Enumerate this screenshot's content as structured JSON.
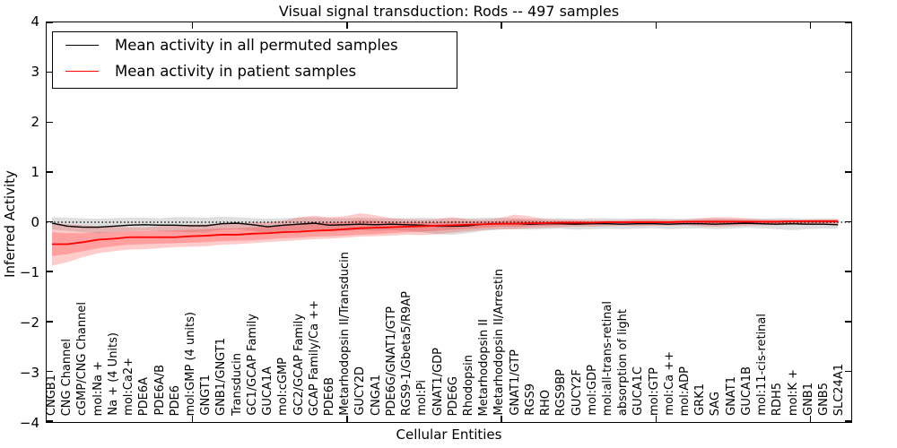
{
  "window": {
    "background": "#ffffff",
    "accent_colors": {
      "permuted": "#000000",
      "patient": "#ff0000"
    }
  },
  "chart_data": {
    "type": "line",
    "title": "Visual signal transduction: Rods -- 497 samples",
    "xlabel": "Cellular Entities",
    "ylabel": "Inferred Activity",
    "ylim": [
      -4,
      4
    ],
    "ytick_values": [
      4,
      3,
      2,
      1,
      0,
      -1,
      -2,
      -3,
      -4
    ],
    "ytick_labels": [
      "4",
      "3",
      "2",
      "1",
      "0",
      "−1",
      "−2",
      "−3",
      "−4"
    ],
    "major_x_tick_positions": [
      10,
      20,
      30,
      40,
      50
    ],
    "grid": false,
    "zero_reference_line": {
      "value": 0,
      "style": "dotted",
      "color": "#000000"
    },
    "legend_position": "upper left",
    "categories": [
      "CNGB1",
      "CNG Channel",
      "cGMP/CNG Channel",
      "mol:Na +",
      "Na + (4 Units)",
      "mol:Ca2+",
      "PDE6A",
      "PDE6A/B",
      "PDE6",
      "mol:GMP (4 units)",
      "GNGT1",
      "GNB1/GNGT1",
      "Transducin",
      "GC1/GCAP Family",
      "GUCA1A",
      "mol:cGMP",
      "GC2/GCAP Family",
      "GCAP Family/Ca ++",
      "PDE6B",
      "Metarhodopsin II/Transducin",
      "GUCY2D",
      "CNGA1",
      "PDE6G/GNAT1/GTP",
      "RGS9-1/Gbeta5/R9AP",
      "mol:Pi",
      "GNAT1/GDP",
      "PDE6G",
      "Rhodopsin",
      "Metarhodopsin II",
      "Metarhodopsin II/Arrestin",
      "GNAT1/GTP",
      "RGS9",
      "RHO",
      "RGS9BP",
      "GUCY2F",
      "mol:GDP",
      "mol:all-trans-retinal",
      "absorption of light",
      "GUCA1C",
      "mol:GTP",
      "mol:Ca ++",
      "mol:ADP",
      "GRK1",
      "SAG",
      "GNAT1",
      "GUCA1B",
      "mol:11-cis-retinal",
      "RDH5",
      "mol:K +",
      "GNB1",
      "GNB5",
      "SLC24A1"
    ],
    "series": [
      {
        "name": "Mean activity in all permuted samples",
        "color": "#000000",
        "line_width": 1.4,
        "values": [
          -0.02,
          -0.08,
          -0.1,
          -0.1,
          -0.08,
          -0.06,
          -0.05,
          -0.06,
          -0.06,
          -0.07,
          -0.07,
          -0.03,
          -0.02,
          -0.05,
          -0.09,
          -0.06,
          -0.04,
          -0.02,
          -0.06,
          -0.05,
          -0.04,
          -0.05,
          -0.04,
          -0.05,
          -0.06,
          -0.08,
          -0.08,
          -0.07,
          -0.04,
          -0.03,
          -0.03,
          -0.04,
          -0.03,
          -0.03,
          -0.04,
          -0.03,
          -0.03,
          -0.04,
          -0.03,
          -0.03,
          -0.04,
          -0.03,
          -0.03,
          -0.04,
          -0.03,
          -0.02,
          -0.03,
          -0.04,
          -0.03,
          -0.04,
          -0.04,
          -0.05
        ]
      },
      {
        "name": "Mean activity in patient samples",
        "color": "#ff0000",
        "line_width": 1.8,
        "values": [
          -0.44,
          -0.44,
          -0.4,
          -0.35,
          -0.33,
          -0.3,
          -0.3,
          -0.3,
          -0.3,
          -0.28,
          -0.27,
          -0.25,
          -0.25,
          -0.23,
          -0.22,
          -0.2,
          -0.19,
          -0.17,
          -0.16,
          -0.14,
          -0.12,
          -0.11,
          -0.1,
          -0.09,
          -0.08,
          -0.07,
          -0.06,
          -0.05,
          -0.04,
          -0.03,
          -0.03,
          -0.02,
          -0.02,
          -0.01,
          -0.01,
          -0.01,
          0.0,
          0.0,
          0.0,
          0.0,
          0.0,
          0.01,
          0.01,
          0.01,
          0.01,
          0.01,
          0.01,
          0.01,
          0.02,
          0.02,
          0.02,
          0.02
        ]
      }
    ],
    "bands": [
      {
        "name": "permuted-samples-range",
        "fill": "rgba(0,0,0,0.13)",
        "hi": [
          0.1,
          0.09,
          0.08,
          0.07,
          0.08,
          0.09,
          0.09,
          0.08,
          0.1,
          0.1,
          0.09,
          0.11,
          0.1,
          0.08,
          0.07,
          0.08,
          0.09,
          0.1,
          0.08,
          0.08,
          0.09,
          0.08,
          0.08,
          0.08,
          0.09,
          0.08,
          0.08,
          0.08,
          0.09,
          0.09,
          0.08,
          0.07,
          0.08,
          0.08,
          0.07,
          0.08,
          0.08,
          0.07,
          0.07,
          0.08,
          0.07,
          0.07,
          0.07,
          0.08,
          0.07,
          0.07,
          0.07,
          0.08,
          0.08,
          0.07,
          0.07,
          0.07
        ],
        "lo": [
          -0.15,
          -0.17,
          -0.2,
          -0.22,
          -0.2,
          -0.18,
          -0.17,
          -0.18,
          -0.19,
          -0.2,
          -0.19,
          -0.15,
          -0.14,
          -0.17,
          -0.21,
          -0.18,
          -0.17,
          -0.14,
          -0.18,
          -0.17,
          -0.16,
          -0.17,
          -0.16,
          -0.17,
          -0.2,
          -0.24,
          -0.25,
          -0.22,
          -0.17,
          -0.15,
          -0.14,
          -0.15,
          -0.14,
          -0.13,
          -0.15,
          -0.14,
          -0.13,
          -0.14,
          -0.13,
          -0.12,
          -0.14,
          -0.13,
          -0.12,
          -0.14,
          -0.13,
          -0.11,
          -0.12,
          -0.14,
          -0.16,
          -0.14,
          -0.13,
          -0.13
        ]
      },
      {
        "name": "patient-samples-range-outer",
        "fill": "rgba(255,0,0,0.20)",
        "hi": [
          -0.02,
          -0.04,
          -0.06,
          -0.08,
          -0.09,
          -0.1,
          -0.1,
          -0.08,
          -0.06,
          -0.05,
          -0.04,
          -0.03,
          -0.02,
          -0.01,
          0.0,
          0.03,
          0.1,
          0.13,
          0.1,
          0.12,
          0.18,
          0.14,
          0.08,
          0.06,
          0.05,
          0.06,
          0.1,
          0.06,
          0.05,
          0.08,
          0.15,
          0.12,
          0.06,
          0.05,
          0.05,
          0.04,
          0.04,
          0.04,
          0.06,
          0.06,
          0.05,
          0.05,
          0.08,
          0.1,
          0.1,
          0.08,
          0.06,
          0.05,
          0.05,
          0.05,
          0.06,
          0.06
        ],
        "lo": [
          -0.87,
          -0.8,
          -0.7,
          -0.62,
          -0.58,
          -0.55,
          -0.54,
          -0.52,
          -0.5,
          -0.49,
          -0.48,
          -0.45,
          -0.44,
          -0.42,
          -0.4,
          -0.38,
          -0.36,
          -0.34,
          -0.33,
          -0.31,
          -0.29,
          -0.28,
          -0.27,
          -0.25,
          -0.26,
          -0.24,
          -0.21,
          -0.18,
          -0.16,
          -0.14,
          -0.14,
          -0.12,
          -0.11,
          -0.1,
          -0.09,
          -0.09,
          -0.08,
          -0.07,
          -0.08,
          -0.07,
          -0.07,
          -0.06,
          -0.08,
          -0.09,
          -0.08,
          -0.07,
          -0.06,
          -0.06,
          -0.05,
          -0.05,
          -0.05,
          -0.04
        ]
      },
      {
        "name": "patient-samples-range-inner",
        "fill": "rgba(255,0,0,0.22)",
        "hi": [
          -0.2,
          -0.22,
          -0.22,
          -0.2,
          -0.2,
          -0.18,
          -0.18,
          -0.17,
          -0.16,
          -0.15,
          -0.14,
          -0.12,
          -0.12,
          -0.1,
          -0.09,
          -0.06,
          -0.03,
          0.0,
          -0.01,
          0.01,
          0.04,
          0.03,
          0.01,
          0.0,
          0.0,
          0.0,
          0.02,
          0.01,
          0.01,
          0.02,
          0.05,
          0.04,
          0.02,
          0.02,
          0.02,
          0.01,
          0.02,
          0.02,
          0.03,
          0.03,
          0.02,
          0.03,
          0.04,
          0.05,
          0.05,
          0.04,
          0.03,
          0.03,
          0.03,
          0.04,
          0.04,
          0.04
        ],
        "lo": [
          -0.68,
          -0.64,
          -0.58,
          -0.52,
          -0.48,
          -0.45,
          -0.44,
          -0.43,
          -0.42,
          -0.41,
          -0.4,
          -0.38,
          -0.37,
          -0.36,
          -0.34,
          -0.32,
          -0.31,
          -0.29,
          -0.28,
          -0.27,
          -0.25,
          -0.24,
          -0.22,
          -0.2,
          -0.19,
          -0.17,
          -0.15,
          -0.13,
          -0.11,
          -0.09,
          -0.09,
          -0.08,
          -0.07,
          -0.06,
          -0.05,
          -0.05,
          -0.04,
          -0.04,
          -0.04,
          -0.04,
          -0.04,
          -0.03,
          -0.04,
          -0.05,
          -0.04,
          -0.04,
          -0.03,
          -0.03,
          -0.03,
          -0.02,
          -0.02,
          -0.02
        ]
      }
    ],
    "legend": [
      {
        "label": "Mean activity in all permuted samples",
        "color": "#000000"
      },
      {
        "label": "Mean activity in patient samples",
        "color": "#ff0000"
      }
    ]
  }
}
